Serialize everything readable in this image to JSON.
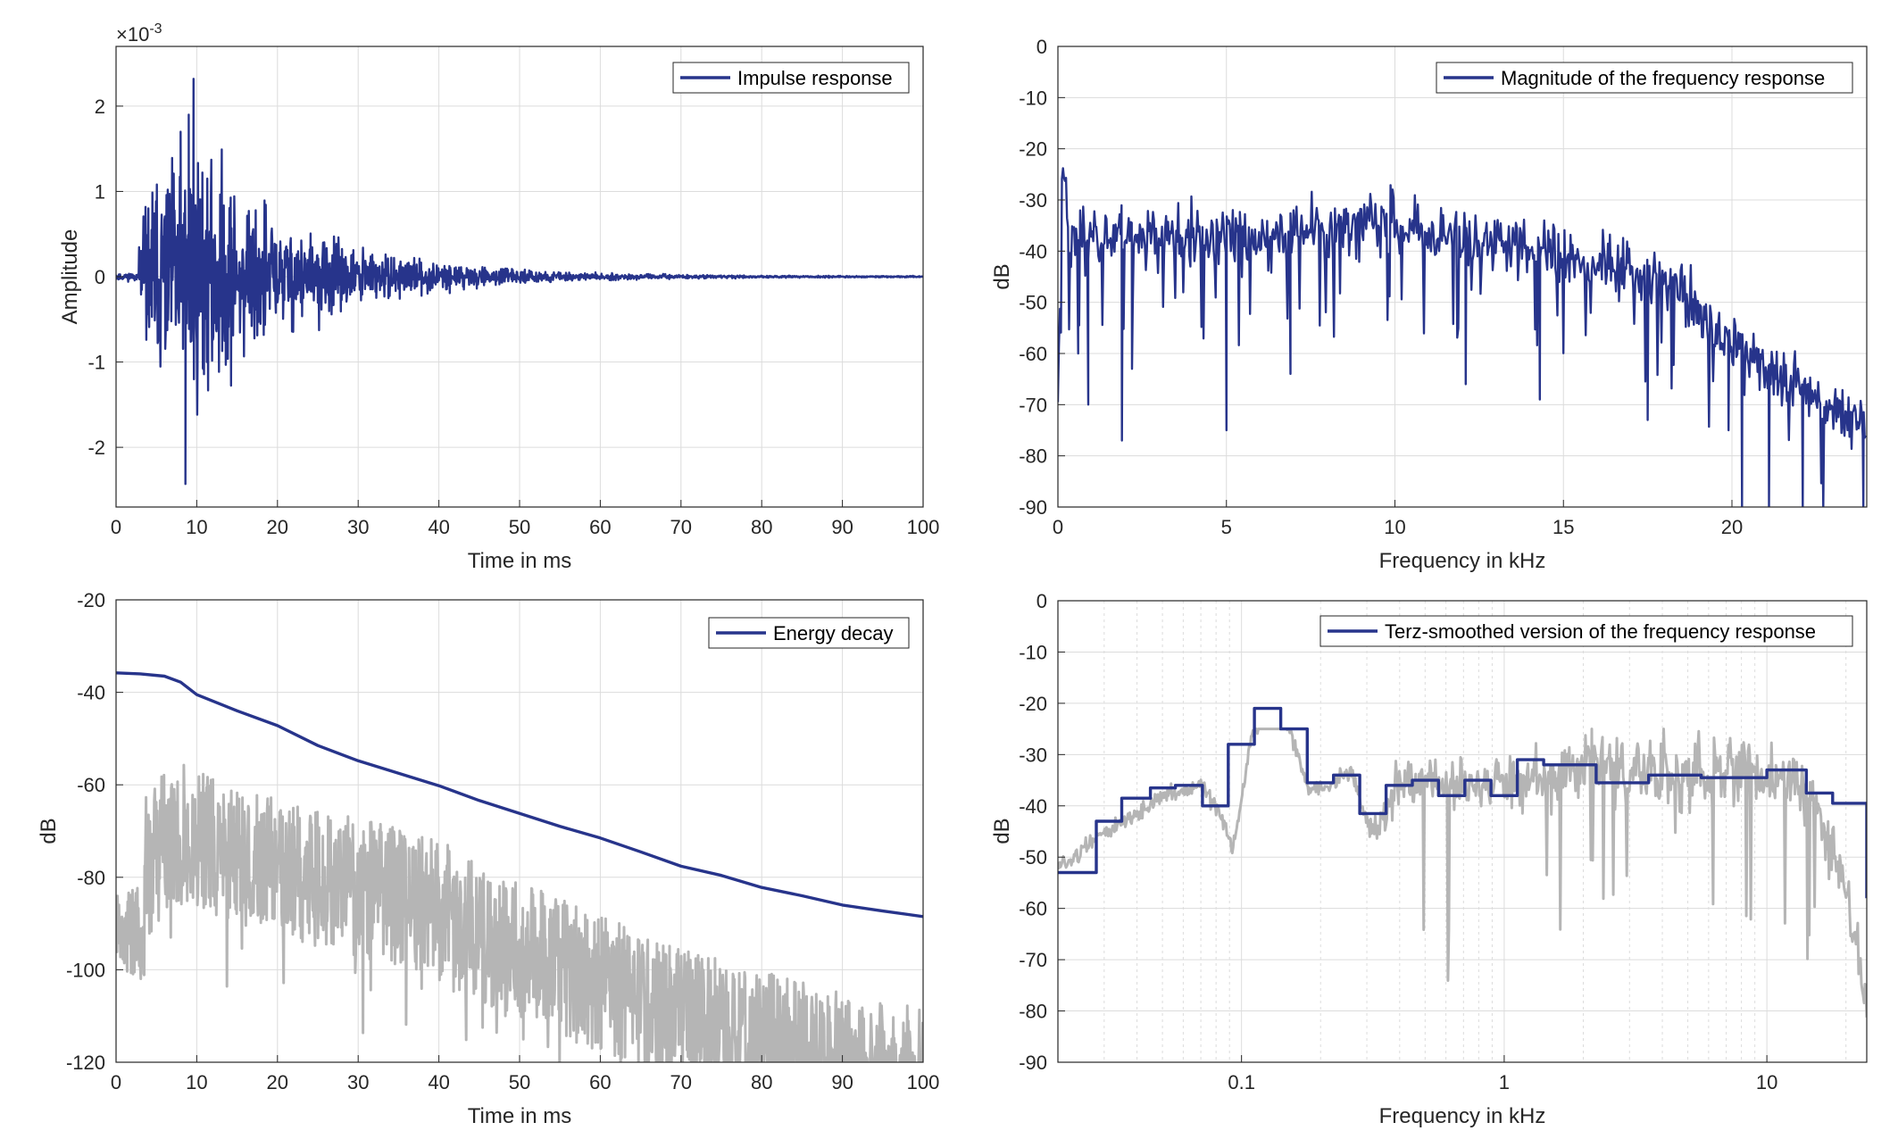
{
  "chart_data": [
    {
      "id": "impulse",
      "type": "line",
      "title": "",
      "xlabel": "Time in ms",
      "ylabel": "Amplitude",
      "xlim": [
        0,
        100
      ],
      "ylim": [
        -0.0027,
        0.0027
      ],
      "xticks": [
        0,
        10,
        20,
        30,
        40,
        50,
        60,
        70,
        80,
        90,
        100
      ],
      "xtick_labels": [
        "0",
        "10",
        "20",
        "30",
        "40",
        "50",
        "60",
        "70",
        "80",
        "90",
        "100"
      ],
      "yticks": [
        -0.002,
        -0.001,
        0,
        0.001,
        0.002
      ],
      "ytick_labels": [
        "-2",
        "-1",
        "0",
        "1",
        "2"
      ],
      "y_exponent_label": "×10",
      "y_exponent_power": "-3",
      "grid": true,
      "legend_position": "top-right",
      "series": [
        {
          "name": "Impulse response",
          "color": "#27348b",
          "synthetic": "impulse",
          "envelope": {
            "onset_ms": 2.8,
            "peak_ms": 9.5,
            "peak_value": 0.00232,
            "min_value": -0.00243,
            "decay_ms": 13
          },
          "x_sampled": [
            0,
            3,
            5,
            8,
            8.6,
            9,
            9.6,
            10,
            12,
            15,
            20,
            25,
            30,
            40,
            50,
            60,
            70,
            100
          ],
          "y_sampled": [
            5e-05,
            0.0005,
            0.0012,
            0.0017,
            -0.00243,
            0.0019,
            0.00232,
            -0.0014,
            -0.0008,
            0.0008,
            -0.0006,
            0.0003,
            0.0002,
            0.0001,
            5e-05,
            2e-05,
            1e-05,
            0
          ]
        }
      ]
    },
    {
      "id": "magnitude",
      "type": "line",
      "title": "",
      "xlabel": "Frequency in kHz",
      "ylabel": "dB",
      "xlim": [
        0,
        24
      ],
      "ylim": [
        -90,
        0
      ],
      "xticks": [
        0,
        5,
        10,
        15,
        20
      ],
      "xtick_labels": [
        "0",
        "5",
        "10",
        "15",
        "20"
      ],
      "yticks": [
        0,
        -10,
        -20,
        -30,
        -40,
        -50,
        -60,
        -70,
        -80,
        -90
      ],
      "ytick_labels": [
        "0",
        "-10",
        "-20",
        "-30",
        "-40",
        "-50",
        "-60",
        "-70",
        "-80",
        "-90"
      ],
      "grid": true,
      "legend_position": "top-right",
      "series": [
        {
          "name": "Magnitude of the frequency response",
          "color": "#27348b",
          "synthetic": "spectrum",
          "trend_x": [
            0,
            0.15,
            0.35,
            1,
            3,
            6,
            9,
            12,
            15,
            17,
            18.5,
            19.5,
            20.5,
            22,
            24
          ],
          "trend_y": [
            -68,
            -21,
            -38,
            -36,
            -37,
            -38,
            -34,
            -38,
            -40,
            -43,
            -47,
            -55,
            -62,
            -66,
            -74
          ],
          "dips_x": [
            0.0,
            0.6,
            0.9,
            1.9,
            2.2,
            5.0,
            6.9,
            12.1,
            14.3,
            17.5,
            19.9,
            20.3,
            21.1,
            22.1,
            23.9
          ],
          "dips_y": [
            -69,
            -60,
            -70,
            -77,
            -63,
            -75,
            -64,
            -66,
            -69,
            -73,
            -75,
            -90,
            -90,
            -90,
            -90
          ]
        }
      ]
    },
    {
      "id": "energy",
      "type": "line",
      "title": "",
      "xlabel": "Time in ms",
      "ylabel": "dB",
      "xlim": [
        0,
        100
      ],
      "ylim": [
        -120,
        -20
      ],
      "xticks": [
        0,
        10,
        20,
        30,
        40,
        50,
        60,
        70,
        80,
        90,
        100
      ],
      "xtick_labels": [
        "0",
        "10",
        "20",
        "30",
        "40",
        "50",
        "60",
        "70",
        "80",
        "90",
        "100"
      ],
      "yticks": [
        -20,
        -40,
        -60,
        -80,
        -100,
        -120
      ],
      "ytick_labels": [
        "-20",
        "-40",
        "-60",
        "-80",
        "-100",
        "-120"
      ],
      "grid": true,
      "legend_position": "top-right",
      "series": [
        {
          "name": "Energy decay",
          "color": "#27348b",
          "x": [
            0,
            3,
            6,
            8,
            10,
            15,
            20,
            25,
            30,
            35,
            40,
            45,
            50,
            55,
            60,
            65,
            70,
            75,
            80,
            85,
            90,
            95,
            100
          ],
          "y": [
            -35.8,
            -36.0,
            -36.5,
            -37.8,
            -40.5,
            -44.0,
            -47.2,
            -51.5,
            -54.8,
            -57.5,
            -60.2,
            -63.4,
            -66.2,
            -69.0,
            -71.5,
            -74.5,
            -77.6,
            -79.6,
            -82.2,
            -84.0,
            -86.0,
            -87.3,
            -88.5
          ]
        },
        {
          "name": "",
          "color": "#b5b5b5",
          "synthetic": "energy_noise",
          "top_x": [
            0,
            2.5,
            3.5,
            8,
            10,
            20,
            30,
            40,
            50,
            60,
            70,
            80,
            90,
            100
          ],
          "top_y": [
            -78,
            -90,
            -60,
            -55,
            -57,
            -63,
            -67,
            -72,
            -81,
            -88,
            -95,
            -100,
            -105,
            -108
          ]
        }
      ]
    },
    {
      "id": "terz",
      "type": "line",
      "title": "",
      "xlabel": "Frequency in kHz",
      "ylabel": "dB",
      "xscale": "log",
      "xlim": [
        0.02,
        24
      ],
      "ylim": [
        -90,
        0
      ],
      "xticks": [
        0.1,
        1,
        10
      ],
      "xtick_labels": [
        "0.1",
        "1",
        "10"
      ],
      "yticks": [
        0,
        -10,
        -20,
        -30,
        -40,
        -50,
        -60,
        -70,
        -80,
        -90
      ],
      "ytick_labels": [
        "0",
        "-10",
        "-20",
        "-30",
        "-40",
        "-50",
        "-60",
        "-70",
        "-80",
        "-90"
      ],
      "grid": true,
      "legend_position": "top-right",
      "series": [
        {
          "name": "Terz-smoothed version of the frequency response",
          "color": "#27348b",
          "step_edges": [
            0.02,
            0.028,
            0.035,
            0.045,
            0.056,
            0.071,
            0.089,
            0.112,
            0.141,
            0.178,
            0.224,
            0.282,
            0.355,
            0.447,
            0.562,
            0.708,
            0.891,
            1.122,
            1.413,
            2.239,
            3.548,
            5.623,
            10.0,
            14.13,
            17.8,
            24.0
          ],
          "step_values": [
            -53,
            -43,
            -38.5,
            -36.5,
            -36,
            -40,
            -28,
            -21,
            -25,
            -35.5,
            -34,
            -41.5,
            -36,
            -35,
            -38,
            -35,
            -38,
            -31,
            -32,
            -35.5,
            -34,
            -34.5,
            -33,
            -37.5,
            -39.5,
            -58
          ]
        },
        {
          "name": "",
          "color": "#b5b5b5",
          "synthetic": "terz_raw",
          "trend_x": [
            0.02,
            0.03,
            0.05,
            0.07,
            0.085,
            0.092,
            0.11,
            0.13,
            0.15,
            0.18,
            0.22,
            0.26,
            0.3,
            0.33,
            0.4,
            0.6,
            1.0,
            1.5,
            2.0,
            4.0,
            8.0,
            12.0,
            15.0,
            18.0,
            24.0
          ],
          "trend_y": [
            -52,
            -45,
            -38,
            -36,
            -43,
            -49,
            -26,
            -20,
            -24,
            -37,
            -36,
            -33,
            -43,
            -45,
            -35,
            -36,
            -36,
            -34,
            -32,
            -34,
            -33,
            -35,
            -38,
            -48,
            -80
          ]
        }
      ]
    }
  ]
}
